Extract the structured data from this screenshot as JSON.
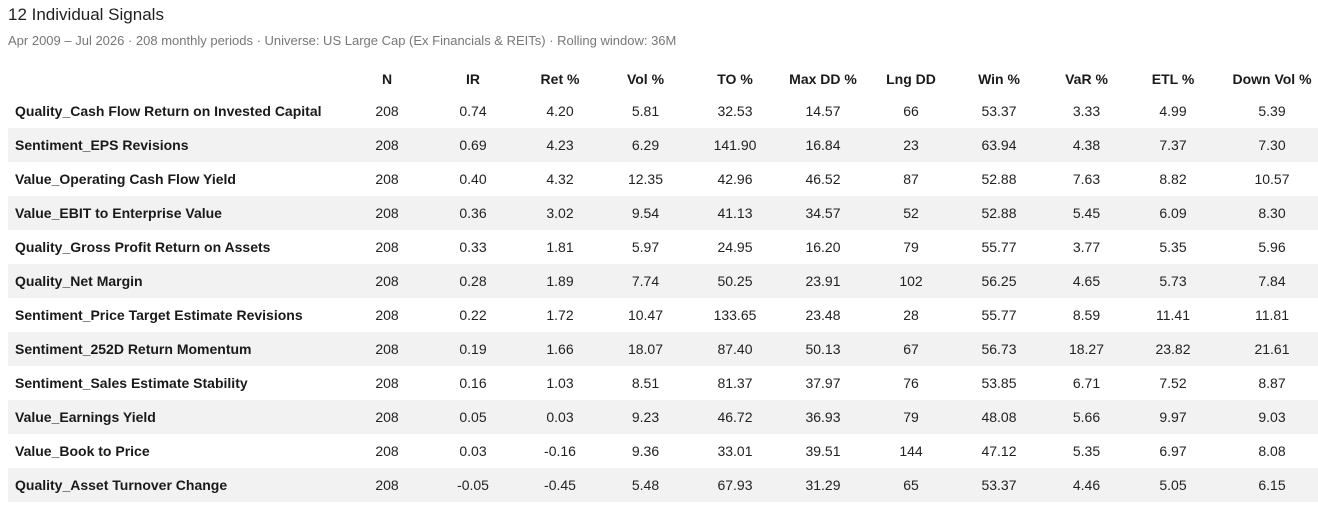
{
  "header": {
    "title": "12 Individual Signals",
    "subtitle": "Apr 2009 – Jul 2026 · 208 monthly periods · Universe: US Large Cap (Ex Financials & REITs) · Rolling window: 36M"
  },
  "table": {
    "columns": [
      "",
      "N",
      "IR",
      "Ret %",
      "Vol %",
      "TO %",
      "Max DD %",
      "Lng DD",
      "Win %",
      "VaR %",
      "ETL %",
      "Down Vol %"
    ],
    "rows": [
      [
        "Quality_Cash Flow Return on Invested Capital",
        "208",
        "0.74",
        "4.20",
        "5.81",
        "32.53",
        "14.57",
        "66",
        "53.37",
        "3.33",
        "4.99",
        "5.39"
      ],
      [
        "Sentiment_EPS Revisions",
        "208",
        "0.69",
        "4.23",
        "6.29",
        "141.90",
        "16.84",
        "23",
        "63.94",
        "4.38",
        "7.37",
        "7.30"
      ],
      [
        "Value_Operating Cash Flow Yield",
        "208",
        "0.40",
        "4.32",
        "12.35",
        "42.96",
        "46.52",
        "87",
        "52.88",
        "7.63",
        "8.82",
        "10.57"
      ],
      [
        "Value_EBIT to Enterprise Value",
        "208",
        "0.36",
        "3.02",
        "9.54",
        "41.13",
        "34.57",
        "52",
        "52.88",
        "5.45",
        "6.09",
        "8.30"
      ],
      [
        "Quality_Gross Profit Return on Assets",
        "208",
        "0.33",
        "1.81",
        "5.97",
        "24.95",
        "16.20",
        "79",
        "55.77",
        "3.77",
        "5.35",
        "5.96"
      ],
      [
        "Quality_Net Margin",
        "208",
        "0.28",
        "1.89",
        "7.74",
        "50.25",
        "23.91",
        "102",
        "56.25",
        "4.65",
        "5.73",
        "7.84"
      ],
      [
        "Sentiment_Price Target Estimate Revisions",
        "208",
        "0.22",
        "1.72",
        "10.47",
        "133.65",
        "23.48",
        "28",
        "55.77",
        "8.59",
        "11.41",
        "11.81"
      ],
      [
        "Sentiment_252D Return Momentum",
        "208",
        "0.19",
        "1.66",
        "18.07",
        "87.40",
        "50.13",
        "67",
        "56.73",
        "18.27",
        "23.82",
        "21.61"
      ],
      [
        "Sentiment_Sales Estimate Stability",
        "208",
        "0.16",
        "1.03",
        "8.51",
        "81.37",
        "37.97",
        "76",
        "53.85",
        "6.71",
        "7.52",
        "8.87"
      ],
      [
        "Value_Earnings Yield",
        "208",
        "0.05",
        "0.03",
        "9.23",
        "46.72",
        "36.93",
        "79",
        "48.08",
        "5.66",
        "9.97",
        "9.03"
      ],
      [
        "Value_Book to Price",
        "208",
        "0.03",
        "-0.16",
        "9.36",
        "33.01",
        "39.51",
        "144",
        "47.12",
        "5.35",
        "6.97",
        "8.08"
      ],
      [
        "Quality_Asset Turnover Change",
        "208",
        "-0.05",
        "-0.45",
        "5.48",
        "67.93",
        "31.29",
        "65",
        "53.37",
        "4.46",
        "5.05",
        "6.15"
      ]
    ]
  }
}
